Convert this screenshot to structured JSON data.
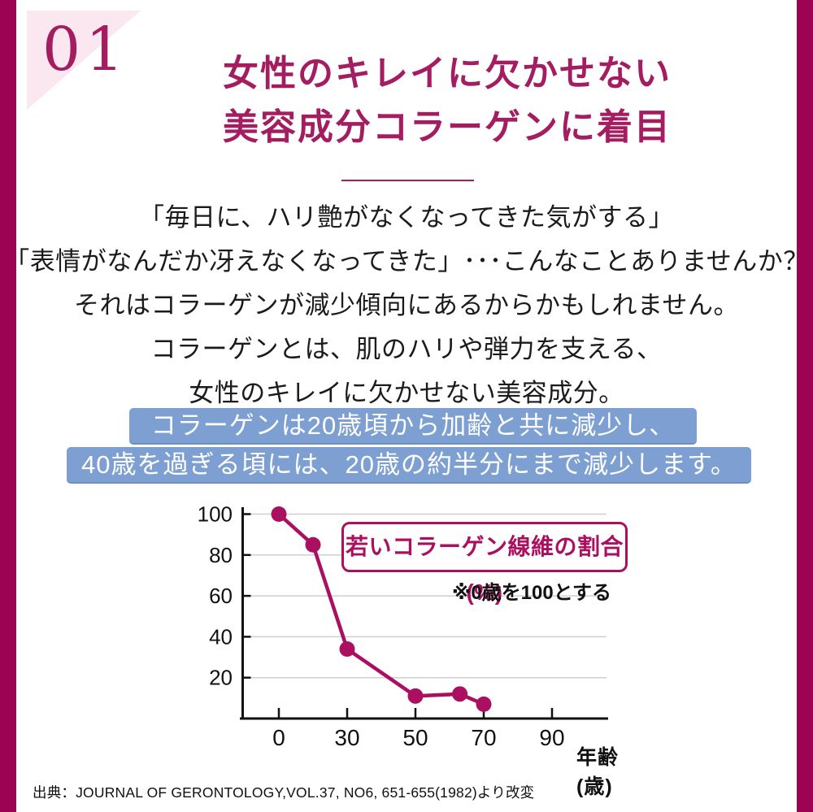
{
  "page": {
    "number": "01",
    "title_line1": "女性のキレイに欠かせない",
    "title_line2": "美容成分コラーゲンに着目",
    "body_lines": [
      "「毎日に、ハリ艶がなくなってきた気がする」",
      "「表情がなんだか冴えなくなってきた」･･･こんなことありませんか？",
      "それはコラーゲンが減少傾向にあるからかもしれません。",
      "コラーゲンとは、肌のハリや弾力を支える、",
      "女性のキレイに欠かせない美容成分。"
    ],
    "highlight_line1": "コラーゲンは20歳頃から加齢と共に減少し、",
    "highlight_line2": "40歳を過ぎる頃には、20歳の約半分にまで減少します。",
    "citation": "出典：JOURNAL OF GERONTOLOGY,VOL.37, NO6, 651-655(1982)より改変"
  },
  "colors": {
    "frame": "#9d0353",
    "accent": "#a31d60",
    "chart_line": "#ab1060",
    "highlight_bg": "#7d9fd1",
    "triangle_pink": "#fbe7f0",
    "grid": "#cfcfcf",
    "axis": "#111111"
  },
  "chart_data": {
    "type": "line",
    "legend": "若いコラーゲン線維の割合(%)",
    "note": "※0歳を100とする",
    "xlabel": "年齢(歳)",
    "x_ticks": [
      0,
      30,
      50,
      70,
      90
    ],
    "y_ticks": [
      20,
      40,
      60,
      80,
      100
    ],
    "x": [
      0,
      15,
      30,
      50,
      63,
      70
    ],
    "values": [
      100,
      85,
      34,
      11,
      12,
      7
    ],
    "ylim": [
      0,
      100
    ],
    "grid": true,
    "legend_position": "upper right",
    "series_color": "#ab1060"
  }
}
